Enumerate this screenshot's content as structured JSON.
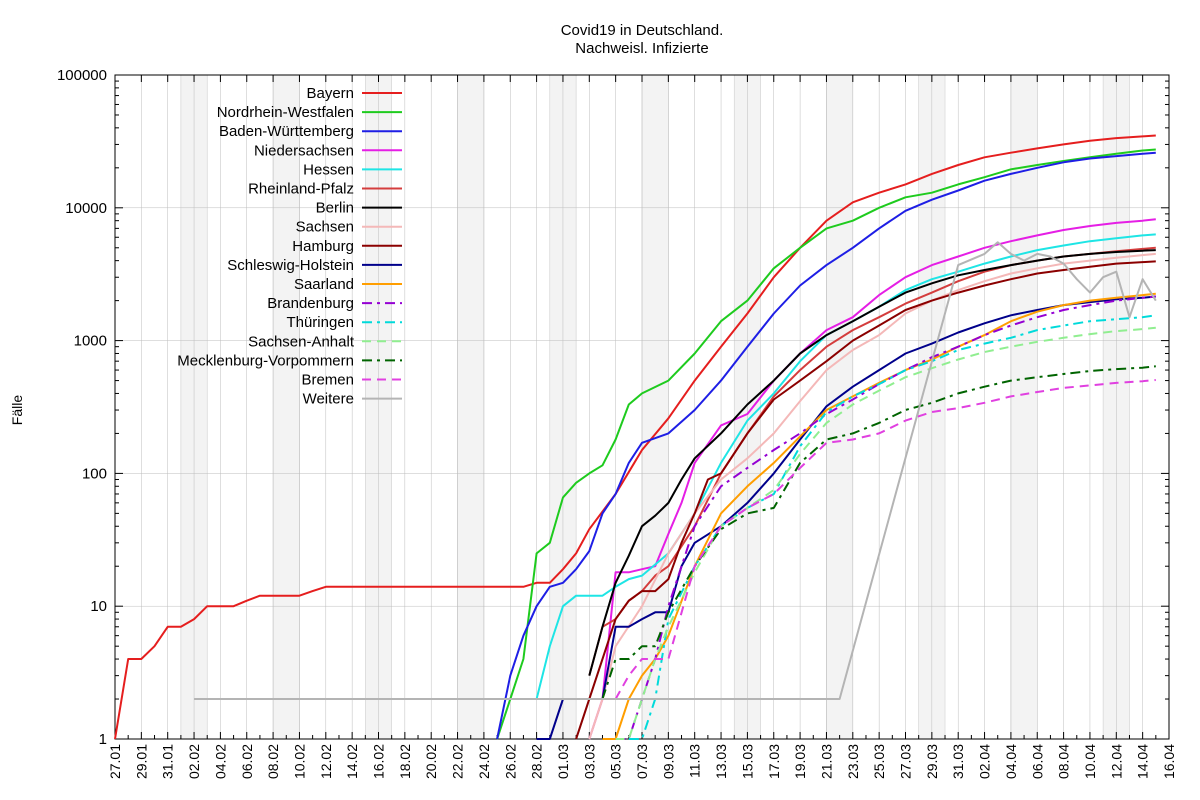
{
  "chart_data": {
    "type": "line",
    "title": "Covid19 in Deutschland.",
    "subtitle": "Nachweisl. Infizierte",
    "ylabel": "Fälle",
    "xlabel": "",
    "yscale": "log",
    "ylim": [
      1,
      100000
    ],
    "y_ticks": [
      1,
      10,
      100,
      1000,
      10000,
      100000
    ],
    "x_range": [
      "27.01",
      "16.04"
    ],
    "x_ticks": [
      "27.01",
      "29.01",
      "31.01",
      "02.02",
      "04.02",
      "06.02",
      "08.02",
      "10.02",
      "12.02",
      "14.02",
      "16.02",
      "18.02",
      "20.02",
      "22.02",
      "24.02",
      "26.02",
      "28.02",
      "01.03",
      "03.03",
      "05.03",
      "07.03",
      "09.03",
      "11.03",
      "13.03",
      "15.03",
      "17.03",
      "19.03",
      "21.03",
      "23.03",
      "25.03",
      "27.03",
      "29.03",
      "31.03",
      "02.04",
      "04.04",
      "06.04",
      "08.04",
      "10.04",
      "12.04",
      "14.04",
      "16.04"
    ],
    "grid": true,
    "weekend_shading": true,
    "legend_position": "top-left",
    "series": [
      {
        "name": "Bayern",
        "color": "#e51e1e",
        "dash": "solid",
        "x": [
          "27.01",
          "28.01",
          "29.01",
          "30.01",
          "31.01",
          "01.02",
          "02.02",
          "03.02",
          "04.02",
          "05.02",
          "06.02",
          "07.02",
          "08.02",
          "09.02",
          "10.02",
          "11.02",
          "12.02",
          "27.02",
          "28.02",
          "29.02",
          "01.03",
          "02.03",
          "03.03",
          "05.03",
          "07.03",
          "09.03",
          "11.03",
          "13.03",
          "15.03",
          "17.03",
          "19.03",
          "21.03",
          "23.03",
          "25.03",
          "27.03",
          "29.03",
          "31.03",
          "02.04",
          "04.04",
          "06.04",
          "08.04",
          "10.04",
          "12.04",
          "14.04",
          "15.04"
        ],
        "y": [
          1,
          4,
          4,
          5,
          7,
          7,
          8,
          10,
          10,
          10,
          11,
          12,
          12,
          12,
          12,
          13,
          14,
          14,
          15,
          15,
          19,
          25,
          38,
          70,
          150,
          260,
          500,
          900,
          1600,
          3000,
          5000,
          8000,
          11000,
          13000,
          15000,
          18000,
          21000,
          24000,
          26000,
          28000,
          30000,
          32000,
          33500,
          34500,
          35000
        ]
      },
      {
        "name": "Nordrhein-Westfalen",
        "color": "#1ecb1e",
        "dash": "solid",
        "x": [
          "25.02",
          "26.02",
          "27.02",
          "28.02",
          "29.02",
          "01.03",
          "02.03",
          "03.03",
          "04.03",
          "05.03",
          "06.03",
          "07.03",
          "09.03",
          "11.03",
          "13.03",
          "15.03",
          "17.03",
          "19.03",
          "21.03",
          "23.03",
          "25.03",
          "27.03",
          "29.03",
          "31.03",
          "02.04",
          "04.04",
          "06.04",
          "08.04",
          "10.04",
          "12.04",
          "14.04",
          "15.04"
        ],
        "y": [
          1,
          2,
          4,
          25,
          30,
          66,
          85,
          100,
          115,
          180,
          330,
          400,
          500,
          800,
          1400,
          2000,
          3500,
          5000,
          7000,
          8000,
          10000,
          12000,
          13000,
          15000,
          17000,
          19500,
          21000,
          22500,
          24000,
          25500,
          27000,
          27500
        ]
      },
      {
        "name": "Baden-Württemberg",
        "color": "#1e1ee5",
        "dash": "solid",
        "x": [
          "25.02",
          "26.02",
          "27.02",
          "28.02",
          "29.02",
          "01.03",
          "02.03",
          "03.03",
          "04.03",
          "05.03",
          "06.03",
          "07.03",
          "09.03",
          "11.03",
          "13.03",
          "15.03",
          "17.03",
          "19.03",
          "21.03",
          "23.03",
          "25.03",
          "27.03",
          "29.03",
          "31.03",
          "02.04",
          "04.04",
          "06.04",
          "08.04",
          "10.04",
          "12.04",
          "14.04",
          "15.04"
        ],
        "y": [
          1,
          3,
          6,
          10,
          14,
          15,
          19,
          26,
          50,
          70,
          120,
          170,
          200,
          300,
          500,
          900,
          1600,
          2600,
          3700,
          5000,
          7000,
          9500,
          11500,
          13500,
          16000,
          18000,
          20000,
          22000,
          23500,
          24500,
          25500,
          26000
        ]
      },
      {
        "name": "Niedersachsen",
        "color": "#e51ee5",
        "dash": "solid",
        "x": [
          "03.03",
          "04.03",
          "05.03",
          "06.03",
          "07.03",
          "08.03",
          "09.03",
          "10.03",
          "11.03",
          "13.03",
          "15.03",
          "17.03",
          "19.03",
          "21.03",
          "23.03",
          "25.03",
          "27.03",
          "29.03",
          "31.03",
          "02.04",
          "04.04",
          "06.04",
          "08.04",
          "10.04",
          "12.04",
          "14.04",
          "15.04"
        ],
        "y": [
          1,
          2,
          18,
          18,
          19,
          20,
          35,
          60,
          120,
          230,
          280,
          500,
          800,
          1200,
          1500,
          2200,
          3000,
          3700,
          4300,
          5000,
          5600,
          6200,
          6800,
          7300,
          7700,
          8000,
          8200
        ]
      },
      {
        "name": "Hessen",
        "color": "#1ee5e5",
        "dash": "solid",
        "x": [
          "28.02",
          "29.02",
          "01.03",
          "02.03",
          "03.03",
          "04.03",
          "05.03",
          "06.03",
          "07.03",
          "09.03",
          "11.03",
          "13.03",
          "15.03",
          "17.03",
          "19.03",
          "21.03",
          "23.03",
          "25.03",
          "27.03",
          "29.03",
          "31.03",
          "02.04",
          "04.04",
          "06.04",
          "08.04",
          "10.04",
          "12.04",
          "14.04",
          "15.04"
        ],
        "y": [
          2,
          5,
          10,
          12,
          12,
          12,
          14,
          16,
          17,
          25,
          50,
          120,
          250,
          400,
          700,
          1100,
          1400,
          1800,
          2400,
          2900,
          3300,
          3800,
          4300,
          4800,
          5200,
          5600,
          5900,
          6200,
          6300
        ]
      },
      {
        "name": "Rheinland-Pfalz",
        "color": "#d43d3d",
        "dash": "solid",
        "x": [
          "03.03",
          "04.03",
          "05.03",
          "06.03",
          "07.03",
          "08.03",
          "09.03",
          "11.03",
          "13.03",
          "15.03",
          "17.03",
          "19.03",
          "21.03",
          "23.03",
          "25.03",
          "27.03",
          "29.03",
          "31.03",
          "02.04",
          "04.04",
          "06.04",
          "08.04",
          "10.04",
          "12.04",
          "14.04",
          "15.04"
        ],
        "y": [
          3,
          7,
          8,
          11,
          13,
          17,
          20,
          40,
          100,
          200,
          380,
          600,
          900,
          1200,
          1500,
          1900,
          2300,
          2800,
          3300,
          3700,
          4000,
          4300,
          4500,
          4700,
          4900,
          5000
        ]
      },
      {
        "name": "Berlin",
        "color": "#000000",
        "dash": "solid",
        "x": [
          "03.03",
          "04.03",
          "05.03",
          "06.03",
          "07.03",
          "08.03",
          "09.03",
          "10.03",
          "11.03",
          "13.03",
          "15.03",
          "17.03",
          "19.03",
          "21.03",
          "23.03",
          "25.03",
          "27.03",
          "29.03",
          "31.03",
          "02.04",
          "04.04",
          "06.04",
          "08.04",
          "10.04",
          "12.04",
          "14.04",
          "15.04"
        ],
        "y": [
          3,
          7,
          15,
          24,
          40,
          48,
          60,
          90,
          130,
          200,
          330,
          500,
          800,
          1100,
          1400,
          1800,
          2300,
          2700,
          3100,
          3400,
          3700,
          4000,
          4300,
          4500,
          4650,
          4750,
          4800
        ]
      },
      {
        "name": "Sachsen",
        "color": "#f4b8b8",
        "dash": "solid",
        "x": [
          "03.03",
          "04.03",
          "05.03",
          "07.03",
          "09.03",
          "11.03",
          "13.03",
          "15.03",
          "17.03",
          "19.03",
          "21.03",
          "23.03",
          "25.03",
          "27.03",
          "29.03",
          "31.03",
          "02.04",
          "04.04",
          "06.04",
          "08.04",
          "10.04",
          "12.04",
          "14.04",
          "15.04"
        ],
        "y": [
          1,
          2,
          5,
          10,
          25,
          50,
          90,
          130,
          200,
          350,
          600,
          850,
          1100,
          1600,
          2000,
          2400,
          2800,
          3200,
          3500,
          3800,
          4000,
          4200,
          4400,
          4500
        ]
      },
      {
        "name": "Hamburg",
        "color": "#8b0000",
        "dash": "solid",
        "x": [
          "02.03",
          "03.03",
          "04.03",
          "05.03",
          "06.03",
          "07.03",
          "08.03",
          "09.03",
          "10.03",
          "11.03",
          "12.03",
          "13.03",
          "15.03",
          "17.03",
          "19.03",
          "21.03",
          "23.03",
          "25.03",
          "27.03",
          "29.03",
          "31.03",
          "02.04",
          "04.04",
          "06.04",
          "08.04",
          "10.04",
          "12.04",
          "14.04",
          "15.04"
        ],
        "y": [
          1,
          2,
          4,
          8,
          11,
          13,
          13,
          16,
          30,
          50,
          90,
          100,
          200,
          360,
          500,
          700,
          1000,
          1300,
          1700,
          2000,
          2300,
          2600,
          2900,
          3200,
          3400,
          3600,
          3800,
          3900,
          3950
        ]
      },
      {
        "name": "Schleswig-Holstein",
        "color": "#00008b",
        "dash": "solid",
        "x": [
          "28.02",
          "29.02",
          "01.03",
          "02.03",
          "03.03",
          "04.03",
          "05.03",
          "06.03",
          "07.03",
          "08.03",
          "09.03",
          "10.03",
          "11.03",
          "13.03",
          "15.03",
          "17.03",
          "19.03",
          "21.03",
          "23.03",
          "25.03",
          "27.03",
          "29.03",
          "31.03",
          "02.04",
          "04.04",
          "06.04",
          "08.04",
          "10.04",
          "12.04",
          "14.04",
          "15.04"
        ],
        "y": [
          1,
          1,
          2,
          2,
          2,
          2,
          7,
          7,
          8,
          9,
          9,
          20,
          30,
          40,
          60,
          100,
          180,
          320,
          450,
          600,
          800,
          950,
          1150,
          1350,
          1550,
          1700,
          1850,
          1950,
          2050,
          2100,
          2150
        ]
      },
      {
        "name": "Saarland",
        "color": "#ff9e00",
        "dash": "solid",
        "x": [
          "04.03",
          "05.03",
          "06.03",
          "07.03",
          "08.03",
          "09.03",
          "11.03",
          "13.03",
          "15.03",
          "17.03",
          "19.03",
          "21.03",
          "23.03",
          "25.03",
          "27.03",
          "29.03",
          "31.03",
          "02.04",
          "04.04",
          "06.04",
          "08.04",
          "10.04",
          "12.04",
          "14.04",
          "15.04"
        ],
        "y": [
          1,
          1,
          2,
          3,
          4,
          6,
          20,
          50,
          80,
          120,
          190,
          300,
          380,
          480,
          600,
          720,
          900,
          1100,
          1400,
          1650,
          1850,
          2000,
          2100,
          2200,
          2250
        ]
      },
      {
        "name": "Brandenburg",
        "color": "#9400d3",
        "dash": "dashdot",
        "x": [
          "05.03",
          "06.03",
          "07.03",
          "08.03",
          "09.03",
          "11.03",
          "13.03",
          "15.03",
          "17.03",
          "19.03",
          "21.03",
          "23.03",
          "25.03",
          "27.03",
          "29.03",
          "31.03",
          "02.04",
          "04.04",
          "06.04",
          "08.04",
          "10.04",
          "12.04",
          "14.04",
          "15.04"
        ],
        "y": [
          1,
          1,
          2,
          4,
          10,
          40,
          80,
          110,
          150,
          200,
          280,
          360,
          470,
          600,
          750,
          900,
          1100,
          1300,
          1500,
          1700,
          1850,
          2000,
          2100,
          2150
        ]
      },
      {
        "name": "Thüringen",
        "color": "#00dada",
        "dash": "dashdot",
        "x": [
          "06.03",
          "07.03",
          "08.03",
          "09.03",
          "11.03",
          "13.03",
          "15.03",
          "17.03",
          "19.03",
          "21.03",
          "23.03",
          "25.03",
          "27.03",
          "29.03",
          "31.03",
          "02.04",
          "04.04",
          "06.04",
          "08.04",
          "10.04",
          "12.04",
          "14.04",
          "15.04"
        ],
        "y": [
          1,
          1,
          2,
          8,
          20,
          40,
          55,
          70,
          160,
          290,
          380,
          470,
          600,
          700,
          850,
          950,
          1050,
          1200,
          1300,
          1400,
          1450,
          1500,
          1550
        ]
      },
      {
        "name": "Sachsen-Anhalt",
        "color": "#90ee90",
        "dash": "dashed",
        "x": [
          "05.03",
          "06.03",
          "07.03",
          "08.03",
          "09.03",
          "11.03",
          "13.03",
          "15.03",
          "17.03",
          "19.03",
          "21.03",
          "23.03",
          "25.03",
          "27.03",
          "29.03",
          "31.03",
          "02.04",
          "04.04",
          "06.04",
          "08.04",
          "10.04",
          "12.04",
          "14.04",
          "15.04"
        ],
        "y": [
          1,
          1,
          2,
          4,
          7,
          18,
          40,
          55,
          75,
          140,
          240,
          330,
          420,
          530,
          620,
          720,
          820,
          900,
          980,
          1050,
          1120,
          1180,
          1220,
          1250
        ]
      },
      {
        "name": "Mecklenburg-Vorpommern",
        "color": "#006400",
        "dash": "dashdot",
        "x": [
          "04.03",
          "05.03",
          "06.03",
          "07.03",
          "08.03",
          "09.03",
          "11.03",
          "13.03",
          "15.03",
          "17.03",
          "19.03",
          "21.03",
          "23.03",
          "25.03",
          "27.03",
          "29.03",
          "31.03",
          "02.04",
          "04.04",
          "06.04",
          "08.04",
          "10.04",
          "12.04",
          "14.04",
          "15.04"
        ],
        "y": [
          2,
          4,
          4,
          5,
          5,
          9,
          20,
          38,
          50,
          55,
          120,
          180,
          200,
          240,
          300,
          340,
          400,
          450,
          500,
          530,
          560,
          590,
          610,
          625,
          640
        ]
      },
      {
        "name": "Bremen",
        "color": "#e040e0",
        "dash": "dashed",
        "x": [
          "05.03",
          "06.03",
          "07.03",
          "08.03",
          "09.03",
          "11.03",
          "13.03",
          "15.03",
          "17.03",
          "19.03",
          "21.03",
          "23.03",
          "25.03",
          "27.03",
          "29.03",
          "31.03",
          "02.04",
          "04.04",
          "06.04",
          "08.04",
          "10.04",
          "12.04",
          "14.04",
          "15.04"
        ],
        "y": [
          2,
          3,
          4,
          4,
          4,
          20,
          40,
          55,
          70,
          110,
          170,
          180,
          200,
          250,
          290,
          310,
          340,
          380,
          410,
          440,
          460,
          480,
          495,
          505
        ]
      },
      {
        "name": "Weitere",
        "color": "#b4b4b4",
        "dash": "solid",
        "x": [
          "02.02",
          "22.03",
          "31.03",
          "02.04",
          "03.04",
          "04.04",
          "05.04",
          "06.04",
          "07.04",
          "08.04",
          "09.04",
          "10.04",
          "11.04",
          "12.04",
          "13.04",
          "14.04",
          "15.04"
        ],
        "y": [
          2,
          2,
          3700,
          4500,
          5500,
          4500,
          4000,
          4500,
          4300,
          3800,
          2900,
          2300,
          3000,
          3300,
          1500,
          2900,
          2000
        ]
      }
    ]
  }
}
